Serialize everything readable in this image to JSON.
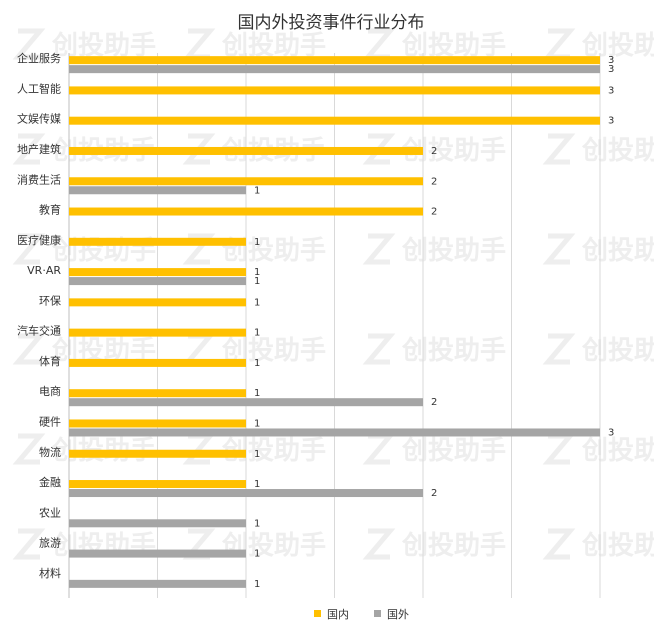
{
  "chart_data": {
    "type": "bar",
    "orientation": "horizontal",
    "title": "国内外投资事件行业分布",
    "categories": [
      "企业服务",
      "人工智能",
      "文娱传媒",
      "地产建筑",
      "消费生活",
      "教育",
      "医疗健康",
      "VR·AR",
      "环保",
      "汽车交通",
      "体育",
      "电商",
      "硬件",
      "物流",
      "金融",
      "农业",
      "旅游",
      "材料"
    ],
    "series": [
      {
        "name": "国内",
        "color": "#FFC000",
        "values": [
          3,
          3,
          3,
          2,
          2,
          2,
          1,
          1,
          1,
          1,
          1,
          1,
          1,
          1,
          1,
          null,
          null,
          null
        ]
      },
      {
        "name": "国外",
        "color": "#A5A5A5",
        "values": [
          3,
          null,
          null,
          null,
          1,
          null,
          null,
          1,
          null,
          null,
          null,
          2,
          3,
          null,
          2,
          1,
          1,
          1
        ]
      }
    ],
    "xlim": [
      0,
      3
    ],
    "grid": true,
    "legend": "bottom",
    "watermark": "创投助手"
  }
}
